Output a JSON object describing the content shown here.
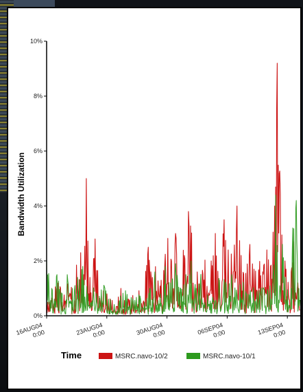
{
  "chart_data": {
    "type": "line",
    "title": "",
    "xlabel": "Time",
    "ylabel": "Bandwidth Utilization",
    "ylim": [
      0,
      10
    ],
    "y_ticks": [
      "0%",
      "2%",
      "4%",
      "6%",
      "8%",
      "10%"
    ],
    "x_ticks": [
      {
        "line1": "16AUG04",
        "line2": "0:00"
      },
      {
        "line1": "23AUG04",
        "line2": "0:00"
      },
      {
        "line1": "30AUG04",
        "line2": "0:00"
      },
      {
        "line1": "06SEP04",
        "line2": "0:00"
      },
      {
        "line1": "13SEP04",
        "line2": "0:00"
      }
    ],
    "x_range_days": [
      0,
      29.5
    ],
    "legend_position": "bottom",
    "series": [
      {
        "name": "MSRC.navo-10/2",
        "color": "#cc1414",
        "peaks": [
          [
            0.0,
            0.4
          ],
          [
            0.5,
            1.5
          ],
          [
            1.3,
            1.2
          ],
          [
            2.0,
            0.9
          ],
          [
            2.6,
            1.8
          ],
          [
            3.2,
            1.0
          ],
          [
            3.8,
            3.2
          ],
          [
            4.3,
            1.5
          ],
          [
            4.6,
            5.0
          ],
          [
            5.0,
            1.4
          ],
          [
            5.6,
            2.8
          ],
          [
            6.3,
            1.0
          ],
          [
            7.0,
            0.8
          ],
          [
            7.8,
            0.6
          ],
          [
            8.6,
            1.0
          ],
          [
            9.3,
            0.5
          ],
          [
            10.2,
            1.1
          ],
          [
            11.0,
            1.0
          ],
          [
            11.8,
            2.5
          ],
          [
            12.3,
            1.4
          ],
          [
            12.8,
            2.0
          ],
          [
            13.4,
            1.2
          ],
          [
            14.0,
            3.2
          ],
          [
            14.5,
            2.0
          ],
          [
            15.0,
            3.0
          ],
          [
            15.5,
            3.5
          ],
          [
            16.0,
            2.2
          ],
          [
            16.5,
            3.8
          ],
          [
            17.0,
            2.8
          ],
          [
            17.5,
            1.6
          ],
          [
            18.0,
            3.7
          ],
          [
            18.6,
            2.5
          ],
          [
            19.1,
            2.0
          ],
          [
            19.6,
            3.0
          ],
          [
            20.1,
            1.6
          ],
          [
            20.6,
            3.5
          ],
          [
            21.1,
            2.4
          ],
          [
            21.6,
            3.2
          ],
          [
            22.1,
            4.0
          ],
          [
            22.6,
            2.2
          ],
          [
            23.1,
            1.5
          ],
          [
            23.6,
            2.6
          ],
          [
            24.1,
            1.7
          ],
          [
            24.6,
            2.2
          ],
          [
            25.1,
            1.6
          ],
          [
            25.6,
            2.4
          ],
          [
            26.0,
            1.8
          ],
          [
            26.5,
            4.0
          ],
          [
            26.8,
            9.2
          ],
          [
            27.0,
            7.0
          ],
          [
            27.3,
            3.5
          ],
          [
            27.7,
            2.0
          ],
          [
            28.2,
            1.5
          ],
          [
            28.7,
            2.7
          ],
          [
            29.2,
            1.2
          ],
          [
            29.5,
            0.5
          ]
        ]
      },
      {
        "name": "MSRC.navo-10/1",
        "color": "#2d9a1e",
        "peaks": [
          [
            0.0,
            2.0
          ],
          [
            0.6,
            1.0
          ],
          [
            1.2,
            1.5
          ],
          [
            1.8,
            0.8
          ],
          [
            2.4,
            1.5
          ],
          [
            3.0,
            1.0
          ],
          [
            3.6,
            1.4
          ],
          [
            4.2,
            1.8
          ],
          [
            4.8,
            1.0
          ],
          [
            5.4,
            1.4
          ],
          [
            6.0,
            0.9
          ],
          [
            6.6,
            1.2
          ],
          [
            7.2,
            0.7
          ],
          [
            7.8,
            1.0
          ],
          [
            8.4,
            0.6
          ],
          [
            9.0,
            1.2
          ],
          [
            9.6,
            0.8
          ],
          [
            10.2,
            0.6
          ],
          [
            10.8,
            0.9
          ],
          [
            11.4,
            0.5
          ],
          [
            12.0,
            1.0
          ],
          [
            12.6,
            1.6
          ],
          [
            13.2,
            0.8
          ],
          [
            13.8,
            1.8
          ],
          [
            14.4,
            1.2
          ],
          [
            15.0,
            1.9
          ],
          [
            15.6,
            1.0
          ],
          [
            16.2,
            1.5
          ],
          [
            16.8,
            2.0
          ],
          [
            17.4,
            1.0
          ],
          [
            18.0,
            1.6
          ],
          [
            18.6,
            0.9
          ],
          [
            19.2,
            1.5
          ],
          [
            19.8,
            1.2
          ],
          [
            20.4,
            1.8
          ],
          [
            21.0,
            1.2
          ],
          [
            21.6,
            1.6
          ],
          [
            22.2,
            1.0
          ],
          [
            22.8,
            1.5
          ],
          [
            23.4,
            0.8
          ],
          [
            24.0,
            1.2
          ],
          [
            24.6,
            0.9
          ],
          [
            25.2,
            1.3
          ],
          [
            25.8,
            0.9
          ],
          [
            26.3,
            1.5
          ],
          [
            26.6,
            4.4
          ],
          [
            27.0,
            2.0
          ],
          [
            27.3,
            4.4
          ],
          [
            27.7,
            1.4
          ],
          [
            28.2,
            1.0
          ],
          [
            28.6,
            3.2
          ],
          [
            29.0,
            4.2
          ],
          [
            29.3,
            1.0
          ],
          [
            29.5,
            0.6
          ]
        ]
      }
    ]
  }
}
